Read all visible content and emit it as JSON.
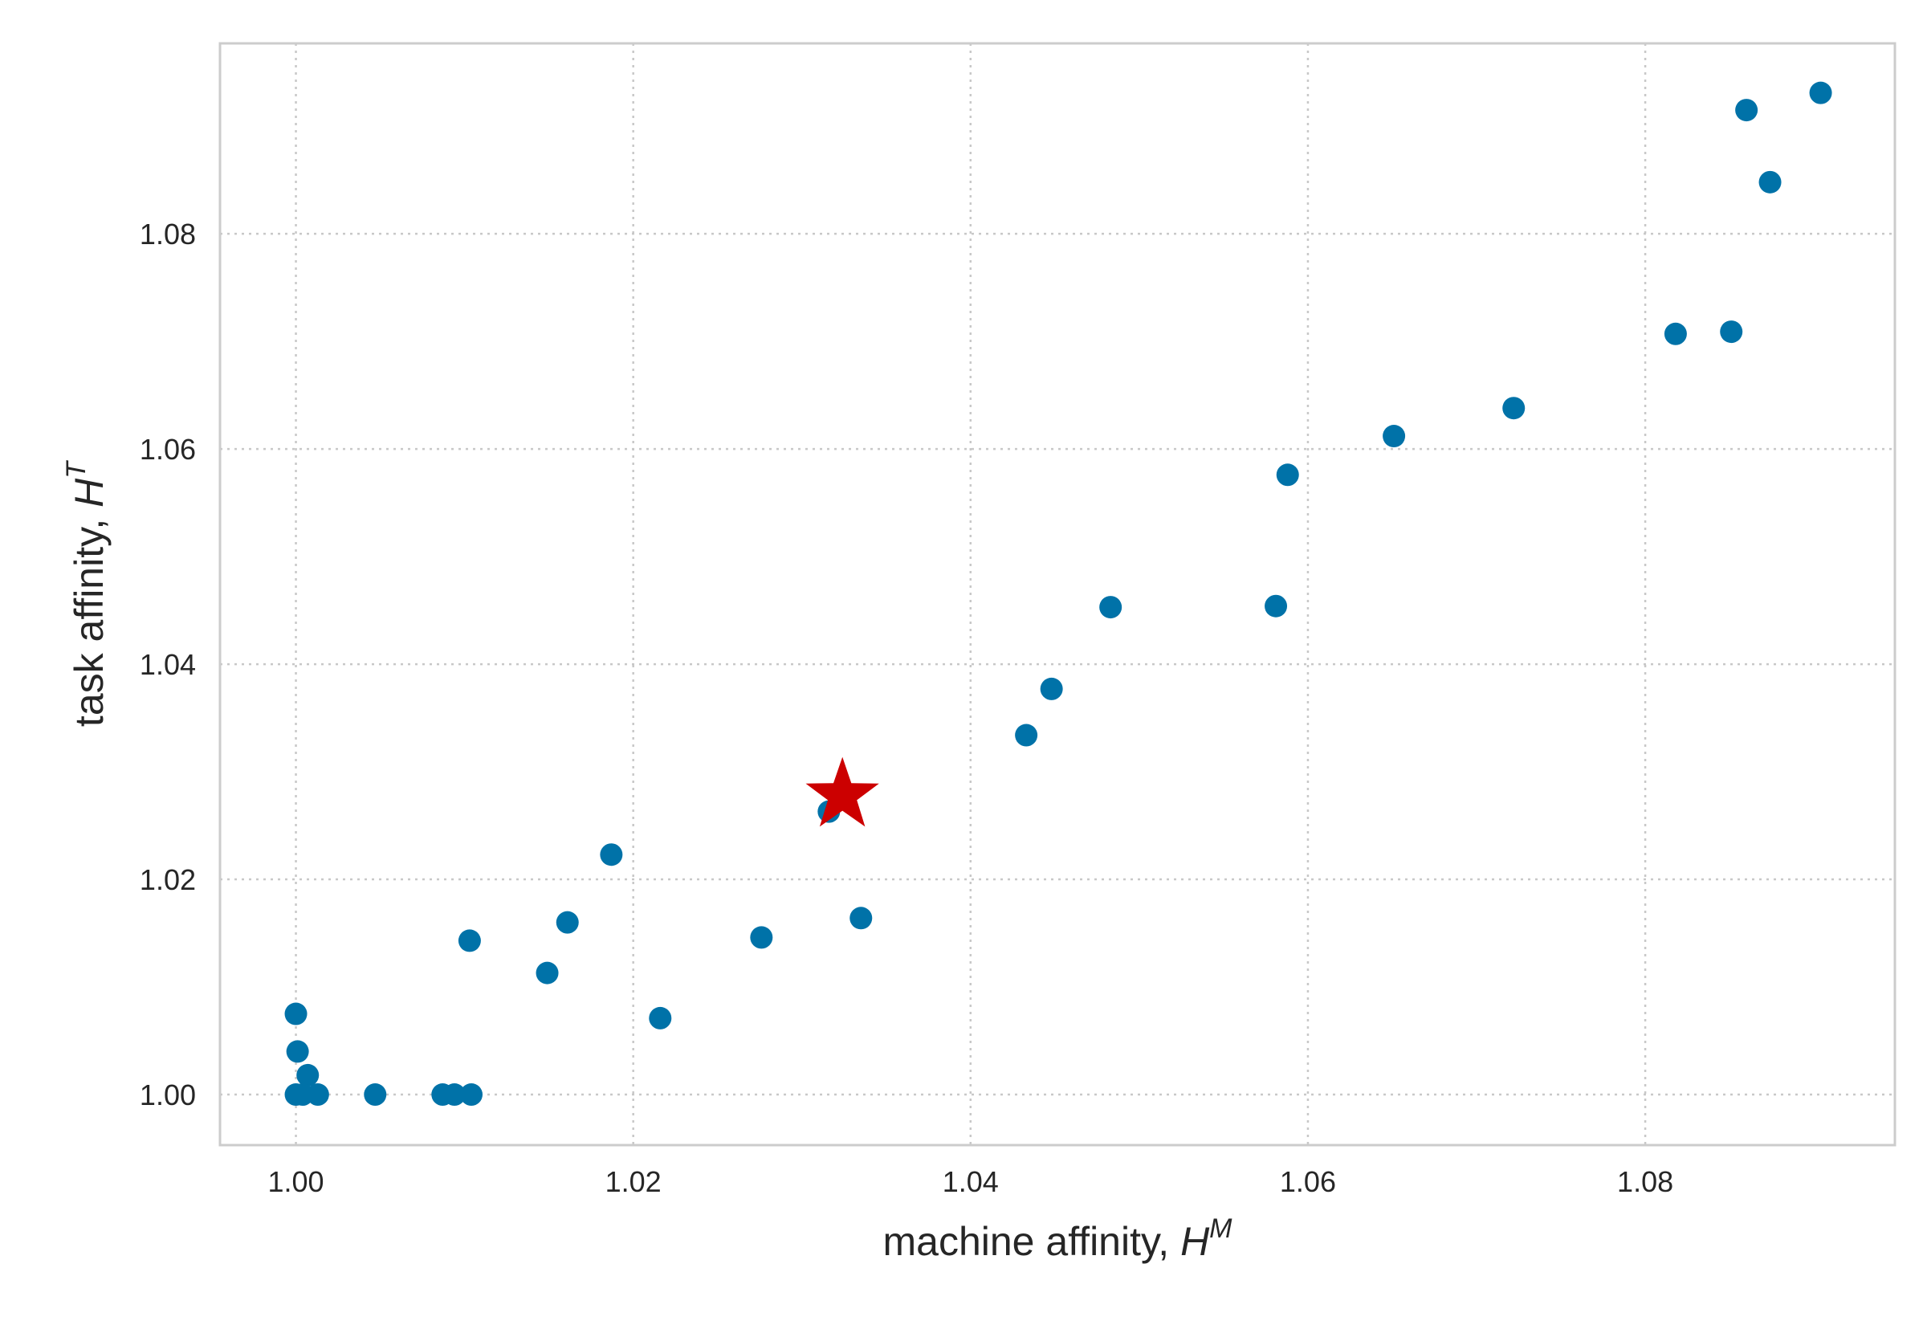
{
  "chart_data": {
    "type": "scatter",
    "xlabel": "machine affinity, ",
    "xlabel_symbol": "H",
    "xlabel_superscript": "M",
    "ylabel": "task affinity, ",
    "ylabel_symbol": "H",
    "ylabel_superscript": "T",
    "xlim": [
      0.9955,
      1.0948
    ],
    "ylim": [
      0.9953,
      1.0977
    ],
    "xticks": [
      1.0,
      1.02,
      1.04,
      1.06,
      1.08
    ],
    "xtick_labels": [
      "1.00",
      "1.02",
      "1.04",
      "1.06",
      "1.08"
    ],
    "yticks": [
      1.0,
      1.02,
      1.04,
      1.06,
      1.08
    ],
    "ytick_labels": [
      "1.00",
      "1.02",
      "1.04",
      "1.06",
      "1.08"
    ],
    "grid": true,
    "point_color": "#0072a8",
    "highlight_color": "#cc0000",
    "points": [
      {
        "x": 1.0,
        "y": 1.0075
      },
      {
        "x": 1.0001,
        "y": 1.004
      },
      {
        "x": 1.0007,
        "y": 1.0018
      },
      {
        "x": 1.0,
        "y": 1.0
      },
      {
        "x": 1.0004,
        "y": 1.0
      },
      {
        "x": 1.0013,
        "y": 1.0
      },
      {
        "x": 1.0047,
        "y": 1.0
      },
      {
        "x": 1.0087,
        "y": 1.0
      },
      {
        "x": 1.0094,
        "y": 1.0
      },
      {
        "x": 1.0104,
        "y": 1.0
      },
      {
        "x": 1.0103,
        "y": 1.0143
      },
      {
        "x": 1.0149,
        "y": 1.0113
      },
      {
        "x": 1.0161,
        "y": 1.016
      },
      {
        "x": 1.0187,
        "y": 1.0223
      },
      {
        "x": 1.0216,
        "y": 1.0071
      },
      {
        "x": 1.0276,
        "y": 1.0146
      },
      {
        "x": 1.0316,
        "y": 1.0263
      },
      {
        "x": 1.0335,
        "y": 1.0164
      },
      {
        "x": 1.0433,
        "y": 1.0334
      },
      {
        "x": 1.0448,
        "y": 1.0377
      },
      {
        "x": 1.0483,
        "y": 1.0453
      },
      {
        "x": 1.0581,
        "y": 1.0454
      },
      {
        "x": 1.0588,
        "y": 1.0576
      },
      {
        "x": 1.0651,
        "y": 1.0612
      },
      {
        "x": 1.0722,
        "y": 1.0638
      },
      {
        "x": 1.0818,
        "y": 1.0707
      },
      {
        "x": 1.0851,
        "y": 1.0709
      },
      {
        "x": 1.086,
        "y": 1.0915
      },
      {
        "x": 1.0874,
        "y": 1.0848
      },
      {
        "x": 1.0904,
        "y": 1.0931
      }
    ],
    "highlight": {
      "x": 1.0324,
      "y": 1.0278,
      "marker": "star"
    }
  }
}
